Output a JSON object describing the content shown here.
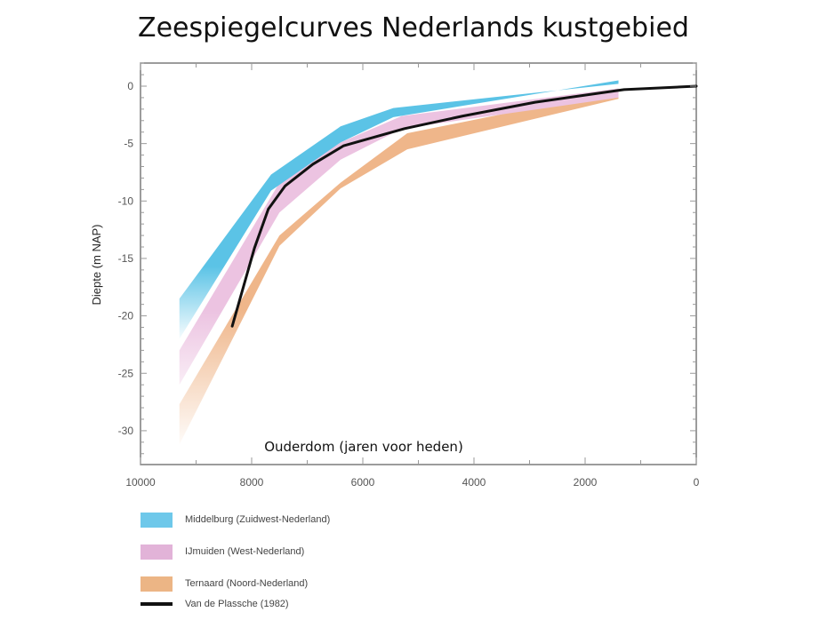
{
  "title": "Zeespiegelcurves Nederlands kustgebied",
  "chart_data": {
    "type": "area",
    "title": "Zeespiegelcurves Nederlands kustgebied",
    "xlabel": "Ouderdom (jaren voor heden)",
    "ylabel": "Diepte (m NAP)",
    "xlim": [
      10000,
      0
    ],
    "ylim": [
      -33,
      2
    ],
    "x_ticks": [
      10000,
      8000,
      6000,
      4000,
      2000,
      0
    ],
    "x_tick_labels": [
      "10000",
      "8000",
      "6000",
      "4000",
      "2000",
      "0"
    ],
    "y_ticks": [
      0,
      -5,
      -10,
      -15,
      -20,
      -25,
      -30
    ],
    "y_tick_labels": [
      "0",
      "-5",
      "-10",
      "-15",
      "-20",
      "-25",
      "-30"
    ],
    "grid": false,
    "legend_position": "below",
    "series": [
      {
        "name": "Middelburg (Zuidwest-Nederland)",
        "kind": "band",
        "color": "#5bc3e6",
        "x": [
          9300,
          7650,
          6400,
          5450,
          1400
        ],
        "upper": [
          -18.5,
          -7.7,
          -3.5,
          -1.9,
          0.2
        ],
        "lower": [
          -22.0,
          -9.1,
          -4.9,
          -2.7,
          0.5
        ]
      },
      {
        "name": "IJmuiden (West-Nederland)",
        "kind": "band",
        "color": "#ebc0df",
        "x": [
          9300,
          7500,
          6400,
          5300,
          1400
        ],
        "upper": [
          -23.0,
          -8.4,
          -4.9,
          -2.6,
          -0.2
        ],
        "lower": [
          -26.0,
          -11.0,
          -6.4,
          -3.7,
          -1.0
        ]
      },
      {
        "name": "Ternaard (Noord-Nederland)",
        "kind": "band",
        "color": "#efb68a",
        "x": [
          9300,
          7500,
          6400,
          5200,
          1400
        ],
        "upper": [
          -27.7,
          -13.0,
          -8.4,
          -4.1,
          -0.4
        ],
        "lower": [
          -31.2,
          -13.9,
          -8.9,
          -5.5,
          -1.1
        ]
      },
      {
        "name": "Van de Plassche (1982)",
        "kind": "line",
        "color": "#111111",
        "x": [
          8350,
          7950,
          7700,
          7400,
          6900,
          6350,
          5250,
          4200,
          2900,
          1300,
          0
        ],
        "y": [
          -20.9,
          -14.1,
          -10.7,
          -8.7,
          -6.8,
          -5.2,
          -3.7,
          -2.6,
          -1.4,
          -0.3,
          0.0
        ]
      }
    ]
  },
  "legend": {
    "items": [
      {
        "label": "Middelburg (Zuidwest-Nederland)",
        "color": "#6ec8ea",
        "kind": "swatch"
      },
      {
        "label": "IJmuiden (West-Nederland)",
        "color": "#e2b3d8",
        "kind": "swatch"
      },
      {
        "label": "Ternaard (Noord-Nederland)",
        "color": "#ecb585",
        "kind": "swatch"
      },
      {
        "label": "Van de Plassche (1982)",
        "color": "#111111",
        "kind": "line"
      }
    ]
  }
}
